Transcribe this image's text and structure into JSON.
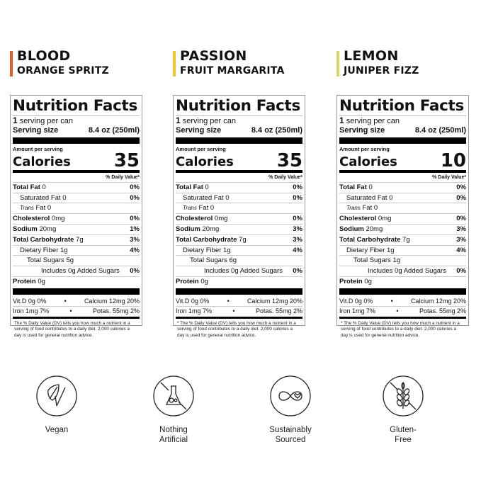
{
  "products": [
    {
      "flavor_line1": "BLOOD",
      "flavor_line2": "ORANGE SPRITZ",
      "accent": "#d9622b",
      "title": "Nutrition Facts",
      "servings_count": "1",
      "servings_text": "serving per can",
      "serving_size_label": "Serving size",
      "serving_size": "8.4 oz (250ml)",
      "amount_label": "Amount per serving",
      "calories_label": "Calories",
      "calories": "35",
      "dv_header": "% Daily Value*",
      "nutrients": [
        {
          "label": "Total Fat",
          "amount": "0",
          "dv": "0%",
          "bold": true,
          "indent": 0
        },
        {
          "label": "Saturated Fat",
          "amount": "0",
          "dv": "0%",
          "bold": false,
          "indent": 1
        },
        {
          "label": "Trans",
          "amount": "Fat 0",
          "dv": "",
          "bold": false,
          "indent": 1,
          "italic": true
        },
        {
          "label": "Cholesterol",
          "amount": "0mg",
          "dv": "0%",
          "bold": true,
          "indent": 0
        },
        {
          "label": "Sodium",
          "amount": "20mg",
          "dv": "1%",
          "bold": true,
          "indent": 0
        },
        {
          "label": "Total Carbohydrate",
          "amount": "7g",
          "dv": "3%",
          "bold": true,
          "indent": 0
        },
        {
          "label": "Dietary Fiber",
          "amount": "1g",
          "dv": "4%",
          "bold": false,
          "indent": 1
        },
        {
          "label": "Total Sugars",
          "amount": "5g",
          "dv": "",
          "bold": false,
          "indent": 2
        },
        {
          "label": "Includes",
          "amount": "0g Added Sugars",
          "dv": "0%",
          "bold": false,
          "indent": 3
        },
        {
          "label": "Protein",
          "amount": "0g",
          "dv": "",
          "bold": true,
          "indent": 0
        }
      ],
      "micro": [
        {
          "left": "Vit.D 0g 0%",
          "right": "Calcium 12mg 20%"
        },
        {
          "left": "Iron 1mg 7%",
          "right": "Potas. 55mg 2%"
        }
      ],
      "footnote": "The % Daily Value (DV) tells you how much a nutrient in a serving of food contributes to a daily diet. 2,000 calories a day is used for general nutrition advice."
    },
    {
      "flavor_line1": "PASSION",
      "flavor_line2": "FRUIT MARGARITA",
      "accent": "#eec42c",
      "title": "Nutrition Facts",
      "servings_count": "1",
      "servings_text": "serving per can",
      "serving_size_label": "Serving size",
      "serving_size": "8.4 oz (250ml)",
      "amount_label": "Amount per serving",
      "calories_label": "Calories",
      "calories": "35",
      "dv_header": "% Daily Value*",
      "nutrients": [
        {
          "label": "Total Fat",
          "amount": "0",
          "dv": "0%",
          "bold": true,
          "indent": 0
        },
        {
          "label": "Saturated Fat",
          "amount": "0",
          "dv": "0%",
          "bold": false,
          "indent": 1
        },
        {
          "label": "Trans",
          "amount": "Fat 0",
          "dv": "",
          "bold": false,
          "indent": 1,
          "italic": true
        },
        {
          "label": "Cholesterol",
          "amount": "0mg",
          "dv": "0%",
          "bold": true,
          "indent": 0
        },
        {
          "label": "Sodium",
          "amount": "20mg",
          "dv": "3%",
          "bold": true,
          "indent": 0
        },
        {
          "label": "Total Carbohydrate",
          "amount": "7g",
          "dv": "3%",
          "bold": true,
          "indent": 0
        },
        {
          "label": "Dietary Fiber",
          "amount": "1g",
          "dv": "4%",
          "bold": false,
          "indent": 1
        },
        {
          "label": "Total Sugars",
          "amount": "6g",
          "dv": "",
          "bold": false,
          "indent": 2
        },
        {
          "label": "Includes",
          "amount": "0g Added Sugars",
          "dv": "0%",
          "bold": false,
          "indent": 3
        },
        {
          "label": "Protein",
          "amount": "0g",
          "dv": "",
          "bold": true,
          "indent": 0
        }
      ],
      "micro": [
        {
          "left": "Vit.D 0g 0%",
          "right": "Calcium 12mg 20%"
        },
        {
          "left": "Iron 1mg 7%",
          "right": "Potas. 55mg 2%"
        }
      ],
      "footnote": "* The % Daily Value (DV) tells you how much a nutrient in a serving of food contributes to a daily diet. 2,000 calories a day is used for general nutrition advice."
    },
    {
      "flavor_line1": "LEMON",
      "flavor_line2": "JUNIPER FIZZ",
      "accent": "#d6dc62",
      "title": "Nutrition Facts",
      "servings_count": "1",
      "servings_text": "serving per can",
      "serving_size_label": "Serving size",
      "serving_size": "8.4 oz (250ml)",
      "amount_label": "Amount per serving",
      "calories_label": "Calories",
      "calories": "10",
      "dv_header": "% Daily Value*",
      "nutrients": [
        {
          "label": "Total Fat",
          "amount": "0",
          "dv": "0%",
          "bold": true,
          "indent": 0
        },
        {
          "label": "Saturated Fat",
          "amount": "0",
          "dv": "0%",
          "bold": false,
          "indent": 1
        },
        {
          "label": "Trans",
          "amount": "Fat 0",
          "dv": "",
          "bold": false,
          "indent": 1,
          "italic": true
        },
        {
          "label": "Cholesterol",
          "amount": "0mg",
          "dv": "0%",
          "bold": true,
          "indent": 0
        },
        {
          "label": "Sodium",
          "amount": "20mg",
          "dv": "3%",
          "bold": true,
          "indent": 0
        },
        {
          "label": "Total Carbohydrate",
          "amount": "7g",
          "dv": "3%",
          "bold": true,
          "indent": 0
        },
        {
          "label": "Dietary Fiber",
          "amount": "1g",
          "dv": "4%",
          "bold": false,
          "indent": 1
        },
        {
          "label": "Total Sugars",
          "amount": "1g",
          "dv": "",
          "bold": false,
          "indent": 2
        },
        {
          "label": "Includes",
          "amount": "0g Added Sugars",
          "dv": "0%",
          "bold": false,
          "indent": 3
        },
        {
          "label": "Protein",
          "amount": "0g",
          "dv": "",
          "bold": true,
          "indent": 0
        }
      ],
      "micro": [
        {
          "left": "Vit.D 0g 0%",
          "right": "Calcium 12mg 20%"
        },
        {
          "left": "Iron 1mg 7%",
          "right": "Potas. 55mg 2%"
        }
      ],
      "footnote": "* The % Daily Value (DV) tells you how much a nutrient in a serving of food contributes to a daily diet. 2,000 calories a day is used for general nutrition advice."
    }
  ],
  "badges": [
    {
      "icon": "vegan-leaf-icon",
      "label": "Vegan"
    },
    {
      "icon": "no-flask-icon",
      "label": "Nothing Artificial"
    },
    {
      "icon": "infinity-heart-icon",
      "label": "Sustainably Sourced"
    },
    {
      "icon": "no-wheat-icon",
      "label": "Gluten-Free"
    }
  ],
  "bullet": "•"
}
